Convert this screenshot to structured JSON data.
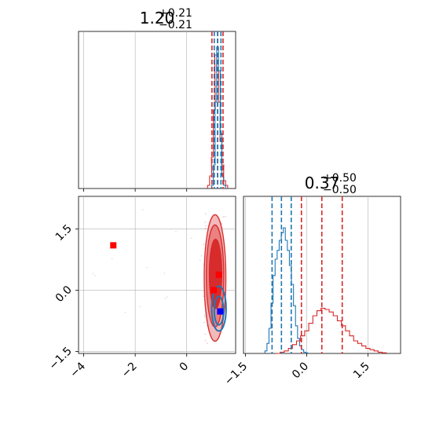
{
  "chart_data": [
    {
      "type": "histogram",
      "panel": "marginal-x",
      "title": {
        "value": "1.20",
        "plus": "+0.21",
        "minus": "−0.21"
      },
      "xlim": [
        -4.2,
        1.9
      ],
      "x_ticks": [
        -4,
        -2,
        0
      ],
      "grid": true,
      "colors": {
        "red": "#d62728",
        "blue": "#1f77b4"
      },
      "series": [
        {
          "color": "red",
          "bins_center": [
            0.85,
            0.93,
            1.0,
            1.07,
            1.13,
            1.2,
            1.27,
            1.33,
            1.4,
            1.47,
            1.55
          ],
          "counts": [
            0.02,
            0.08,
            0.2,
            0.5,
            0.85,
            0.75,
            0.55,
            0.3,
            0.15,
            0.05,
            0.02
          ],
          "quantile_lines": [
            0.98,
            1.2,
            1.41
          ]
        },
        {
          "color": "blue",
          "bins_center": [
            1.0,
            1.07,
            1.13,
            1.2,
            1.27,
            1.33,
            1.4,
            1.47
          ],
          "counts": [
            0.02,
            0.15,
            0.55,
            0.9,
            0.75,
            0.35,
            0.08,
            0.02
          ],
          "quantile_lines": [
            1.07,
            1.2,
            1.33
          ]
        }
      ]
    },
    {
      "type": "contour",
      "panel": "joint",
      "xlim": [
        -4.2,
        1.9
      ],
      "ylim": [
        -1.55,
        2.3
      ],
      "x_ticks": [
        "−4",
        "−2",
        "0"
      ],
      "y_ticks": [
        "−1.5",
        "0.0",
        "1.5"
      ],
      "x_tick_values": [
        -4,
        -2,
        0
      ],
      "y_tick_values": [
        -1.5,
        0,
        1.5
      ],
      "grid": true,
      "red_markers": [
        {
          "x": -2.85,
          "y": 1.1
        },
        {
          "x": 1.25,
          "y": 0.38
        },
        {
          "x": 1.05,
          "y": 0.0
        }
      ],
      "blue_markers": [
        {
          "x": 1.3,
          "y": -0.52
        }
      ],
      "red_contours": [
        {
          "cx": 1.1,
          "cy": 0.3,
          "rx": 0.42,
          "ry": 1.55,
          "fill": "#f4b7b7"
        },
        {
          "cx": 1.1,
          "cy": 0.35,
          "rx": 0.34,
          "ry": 1.25,
          "fill": "#eb7f7f"
        },
        {
          "cx": 1.12,
          "cy": 0.4,
          "rx": 0.24,
          "ry": 0.85,
          "fill": "#d62728"
        }
      ],
      "blue_contours": [
        {
          "cx": 1.25,
          "cy": -0.45,
          "rx": 0.28,
          "ry": 0.55
        },
        {
          "cx": 1.25,
          "cy": -0.5,
          "rx": 0.18,
          "ry": 0.35
        }
      ]
    },
    {
      "type": "histogram",
      "panel": "marginal-y",
      "title": {
        "value": "0.37",
        "plus": "+0.50",
        "minus": "−0.50"
      },
      "xlim": [
        -1.55,
        2.3
      ],
      "x_ticks": [
        "−1.5",
        "0.0",
        "1.5"
      ],
      "x_tick_values": [
        -1.5,
        0,
        1.5
      ],
      "grid": true,
      "series": [
        {
          "color": "blue",
          "bins_center": [
            -1.0,
            -0.95,
            -0.9,
            -0.85,
            -0.8,
            -0.75,
            -0.7,
            -0.65,
            -0.6,
            -0.55,
            -0.5,
            -0.45,
            -0.4,
            -0.35,
            -0.3,
            -0.25,
            -0.2,
            -0.15,
            -0.1,
            -0.05,
            0.0
          ],
          "counts": [
            0.02,
            0.08,
            0.2,
            0.4,
            0.62,
            0.75,
            0.82,
            0.9,
            0.96,
            1.0,
            0.9,
            0.82,
            0.7,
            0.55,
            0.38,
            0.22,
            0.12,
            0.06,
            0.03,
            0.01,
            0.005
          ],
          "quantile_lines": [
            -0.85,
            -0.62,
            -0.38
          ]
        },
        {
          "color": "red",
          "bins_center": [
            -0.7,
            -0.6,
            -0.5,
            -0.4,
            -0.3,
            -0.2,
            -0.1,
            0.0,
            0.1,
            0.2,
            0.3,
            0.4,
            0.5,
            0.6,
            0.7,
            0.8,
            0.9,
            1.0,
            1.1,
            1.2,
            1.3,
            1.4,
            1.5,
            1.6,
            1.7,
            1.8,
            1.9
          ],
          "counts": [
            0.0,
            0.01,
            0.02,
            0.04,
            0.07,
            0.1,
            0.14,
            0.18,
            0.24,
            0.3,
            0.34,
            0.36,
            0.35,
            0.33,
            0.3,
            0.26,
            0.22,
            0.18,
            0.14,
            0.1,
            0.08,
            0.06,
            0.04,
            0.03,
            0.02,
            0.01,
            0.005
          ],
          "quantile_lines": [
            -0.13,
            0.37,
            0.87
          ]
        }
      ]
    }
  ]
}
